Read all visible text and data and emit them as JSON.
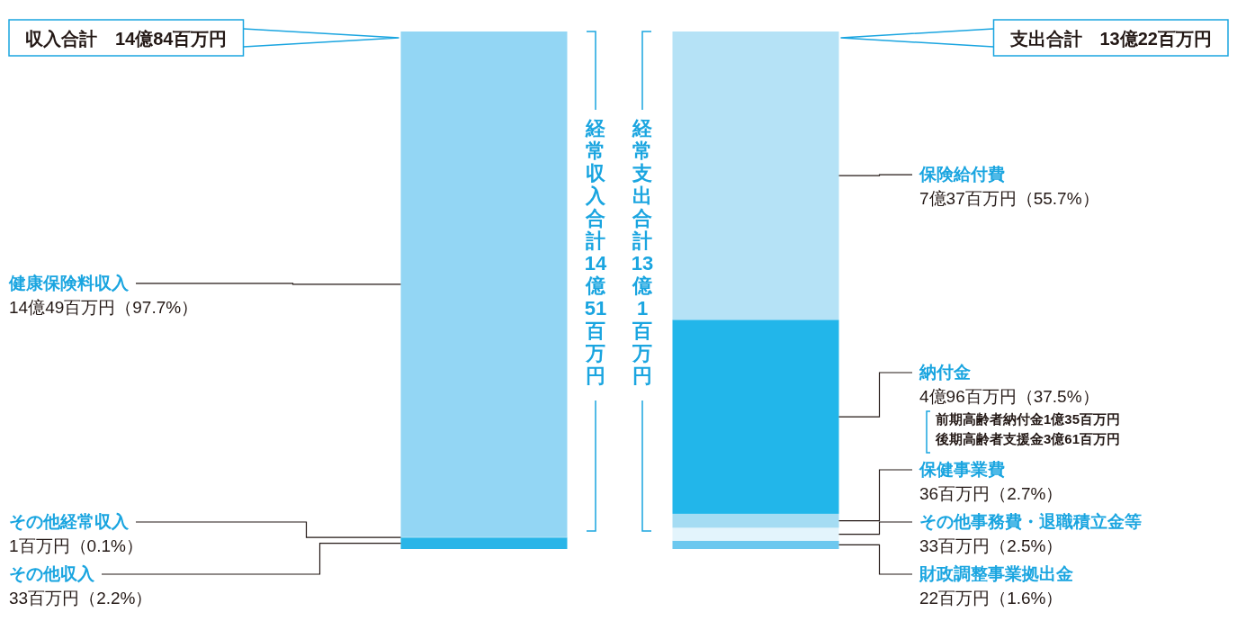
{
  "chart_data": {
    "type": "bar",
    "stacked": true,
    "categories": [
      null,
      null
    ],
    "series": [
      {
        "name": "その他収入",
        "color": "#29b5e8",
        "values": [
          2.2,
          null
        ],
        "value_labels": [
          "33百万円（2.2%）",
          null
        ]
      },
      {
        "name": "その他経常収入",
        "color": "#5cc6ee",
        "values": [
          0.1,
          null
        ],
        "value_labels": [
          "1百万円（0.1%）",
          null
        ]
      },
      {
        "name": "健康保険料収入",
        "color": "#93d6f4",
        "values": [
          97.7,
          null
        ],
        "value_labels": [
          "14億49百万円（97.7%）",
          null
        ]
      },
      {
        "name": "財政調整事業拠出金",
        "color": "#6cc8ef",
        "values": [
          null,
          1.6
        ],
        "value_labels": [
          null,
          "22百万円（1.6%）"
        ]
      },
      {
        "name": "その他事務費・退職積立金等",
        "color": "#e3f4fc",
        "values": [
          null,
          2.5
        ],
        "value_labels": [
          null,
          "33百万円（2.5%）"
        ]
      },
      {
        "name": "保健事業費",
        "color": "#a5dcf3",
        "values": [
          null,
          2.7
        ],
        "value_labels": [
          null,
          "36百万円（2.7%）"
        ]
      },
      {
        "name": "納付金",
        "color": "#22b6ea",
        "values": [
          null,
          37.5
        ],
        "value_labels": [
          null,
          "4億96百万円（37.5%）"
        ]
      },
      {
        "name": "保険給付費",
        "color": "#b5e2f6",
        "values": [
          null,
          55.7
        ],
        "value_labels": [
          null,
          "7億37百万円（55.7%）"
        ]
      }
    ],
    "annotations": [
      "収入合計　14億84百万円",
      "支出合計　13億22百万円",
      "経常収入合計14億51百万円",
      "経常支出合計13億1百万円",
      "前期高齢者納付金1億35百万円",
      "後期高齢者支援金3億61百万円"
    ]
  }
}
